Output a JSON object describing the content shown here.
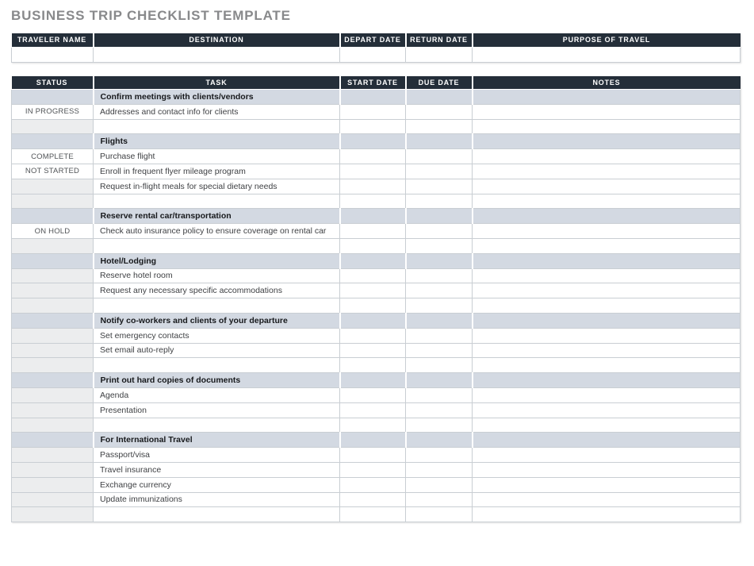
{
  "page_title": "BUSINESS TRIP CHECKLIST TEMPLATE",
  "trip_table": {
    "headers": [
      "TRAVELER NAME",
      "DESTINATION",
      "DEPART DATE",
      "RETURN DATE",
      "PURPOSE OF TRAVEL"
    ],
    "values": [
      "",
      "",
      "",
      "",
      ""
    ]
  },
  "checklist_table": {
    "headers": [
      "STATUS",
      "TASK",
      "START DATE",
      "DUE DATE",
      "NOTES"
    ],
    "rows": [
      {
        "section": true,
        "status": "",
        "task": "Confirm meetings with clients/vendors",
        "start_date": "",
        "due_date": "",
        "notes": ""
      },
      {
        "section": false,
        "status": "IN PROGRESS",
        "task": "Addresses and contact info for clients",
        "start_date": "",
        "due_date": "",
        "notes": ""
      },
      {
        "section": false,
        "status": "",
        "task": "",
        "start_date": "",
        "due_date": "",
        "notes": ""
      },
      {
        "section": true,
        "status": "",
        "task": "Flights",
        "start_date": "",
        "due_date": "",
        "notes": ""
      },
      {
        "section": false,
        "status": "COMPLETE",
        "task": "Purchase flight",
        "start_date": "",
        "due_date": "",
        "notes": ""
      },
      {
        "section": false,
        "status": "NOT STARTED",
        "task": "Enroll in frequent flyer mileage program",
        "start_date": "",
        "due_date": "",
        "notes": ""
      },
      {
        "section": false,
        "status": "",
        "task": "Request in-flight meals for special dietary needs",
        "start_date": "",
        "due_date": "",
        "notes": ""
      },
      {
        "section": false,
        "status": "",
        "task": "",
        "start_date": "",
        "due_date": "",
        "notes": ""
      },
      {
        "section": true,
        "status": "",
        "task": "Reserve rental car/transportation",
        "start_date": "",
        "due_date": "",
        "notes": ""
      },
      {
        "section": false,
        "status": "ON HOLD",
        "task": "Check auto insurance policy to ensure coverage on rental car",
        "start_date": "",
        "due_date": "",
        "notes": ""
      },
      {
        "section": false,
        "status": "",
        "task": "",
        "start_date": "",
        "due_date": "",
        "notes": ""
      },
      {
        "section": true,
        "status": "",
        "task": "Hotel/Lodging",
        "start_date": "",
        "due_date": "",
        "notes": ""
      },
      {
        "section": false,
        "status": "",
        "task": "Reserve hotel room",
        "start_date": "",
        "due_date": "",
        "notes": ""
      },
      {
        "section": false,
        "status": "",
        "task": "Request any necessary specific accommodations",
        "start_date": "",
        "due_date": "",
        "notes": ""
      },
      {
        "section": false,
        "status": "",
        "task": "",
        "start_date": "",
        "due_date": "",
        "notes": ""
      },
      {
        "section": true,
        "status": "",
        "task": "Notify co-workers and clients of your departure",
        "start_date": "",
        "due_date": "",
        "notes": ""
      },
      {
        "section": false,
        "status": "",
        "task": "Set emergency contacts",
        "start_date": "",
        "due_date": "",
        "notes": ""
      },
      {
        "section": false,
        "status": "",
        "task": "Set email auto-reply",
        "start_date": "",
        "due_date": "",
        "notes": ""
      },
      {
        "section": false,
        "status": "",
        "task": "",
        "start_date": "",
        "due_date": "",
        "notes": ""
      },
      {
        "section": true,
        "status": "",
        "task": "Print out hard copies of documents",
        "start_date": "",
        "due_date": "",
        "notes": ""
      },
      {
        "section": false,
        "status": "",
        "task": "Agenda",
        "start_date": "",
        "due_date": "",
        "notes": ""
      },
      {
        "section": false,
        "status": "",
        "task": "Presentation",
        "start_date": "",
        "due_date": "",
        "notes": ""
      },
      {
        "section": false,
        "status": "",
        "task": "",
        "start_date": "",
        "due_date": "",
        "notes": ""
      },
      {
        "section": true,
        "status": "",
        "task": "For International Travel",
        "start_date": "",
        "due_date": "",
        "notes": ""
      },
      {
        "section": false,
        "status": "",
        "task": "Passport/visa",
        "start_date": "",
        "due_date": "",
        "notes": ""
      },
      {
        "section": false,
        "status": "",
        "task": "Travel insurance",
        "start_date": "",
        "due_date": "",
        "notes": ""
      },
      {
        "section": false,
        "status": "",
        "task": "Exchange currency",
        "start_date": "",
        "due_date": "",
        "notes": ""
      },
      {
        "section": false,
        "status": "",
        "task": "Update immunizations",
        "start_date": "",
        "due_date": "",
        "notes": ""
      },
      {
        "section": false,
        "status": "",
        "task": "",
        "start_date": "",
        "due_date": "",
        "notes": ""
      }
    ]
  },
  "colors": {
    "header_bg": "#242e39",
    "header_text": "#ffffff",
    "section_bg": "#d3d9e2",
    "empty_status_bg": "#ecedee",
    "border": "#c9ced3",
    "title_text": "#88898b",
    "body_text": "#3f4144",
    "status_text": "#515457",
    "section_text": "#17191c"
  }
}
